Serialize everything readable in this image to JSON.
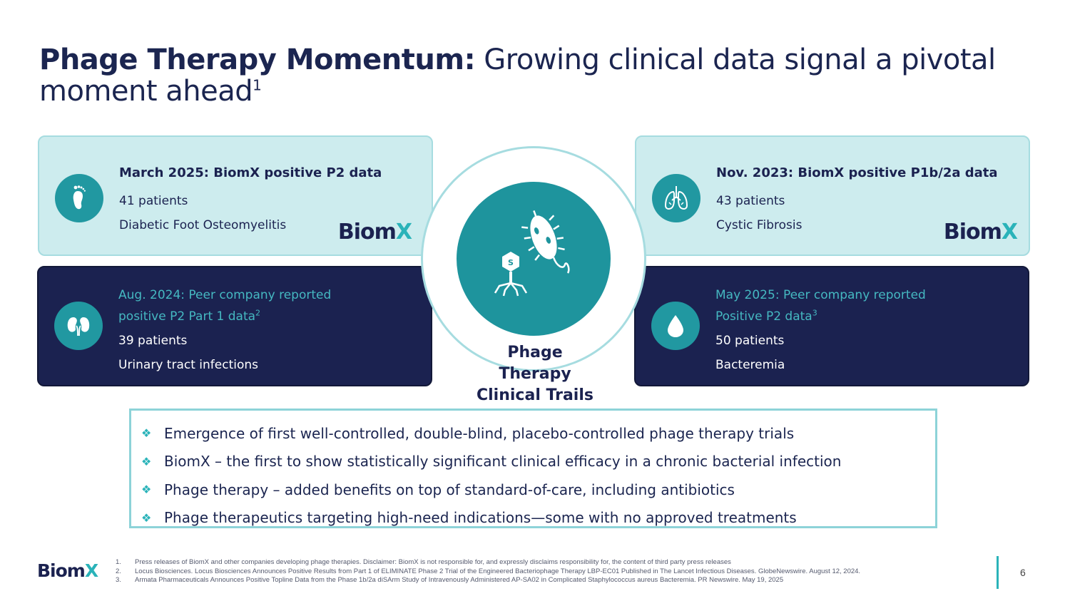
{
  "title": {
    "bold": "Phage Therapy Momentum:",
    "rest": " Growing clinical data signal a pivotal moment ahead",
    "sup": "1"
  },
  "cards": {
    "top_left": {
      "heading": "March 2025: BiomX positive P2 data",
      "line1": "41 patients",
      "line2": "Diabetic Foot Osteomyelitis",
      "icon": "foot-icon",
      "brand_main": "Biom",
      "brand_x": "X"
    },
    "top_right": {
      "heading": "Nov. 2023: BiomX positive P1b/2a data",
      "line1": "43 patients",
      "line2": "Cystic Fibrosis",
      "icon": "lungs-icon",
      "brand_main": "Biom",
      "brand_x": "X"
    },
    "bottom_left": {
      "heading_line1": "Aug. 2024: Peer company reported",
      "heading_line2": "positive P2  Part 1 data",
      "sup": "2",
      "line1": "39 patients",
      "line2": "Urinary tract infections",
      "icon": "kidneys-icon"
    },
    "bottom_right": {
      "heading_line1": "May 2025: Peer company reported",
      "heading_line2": "Positive P2 data",
      "sup": "3",
      "line1": "50 patients",
      "line2": "Bacteremia",
      "icon": "drop-icon"
    }
  },
  "center": {
    "label_line1": "Phage",
    "label_line2": "Therapy",
    "label_line3": "Clinical Trails",
    "icon": "phage-bacteria-icon"
  },
  "bullets": [
    "Emergence of first well-controlled, double-blind, placebo-controlled phage therapy trials",
    "BiomX – the first to show statistically significant clinical efficacy in a chronic bacterial infection",
    "Phage therapy – added benefits on top of standard-of-care, including antibiotics",
    "Phage therapeutics targeting high-need indications—some with no approved treatments"
  ],
  "footer": {
    "logo_main": "Biom",
    "logo_x": "X",
    "footnotes": [
      {
        "n": "1.",
        "text": "Press releases of BiomX and other companies developing phage therapies. Disclaimer: BiomX is not responsible for, and expressly disclaims responsibility for, the content of third party press releases"
      },
      {
        "n": "2.",
        "text": "Locus Biosciences. Locus Biosciences Announces Positive Results from Part 1 of ELIMINATE Phase 2 Trial of the Engineered Bacteriophage Therapy LBP-EC01 Published in The Lancet Infectious Diseases. GlobeNewswire. August 12, 2024."
      },
      {
        "n": "3.",
        "text": "Armata Pharmaceuticals Announces Positive Topline Data from the Phase 1b/2a diSArm Study of Intravenously Administered AP-SA02 in Complicated Staphylococcus aureus Bacteremia. PR Newswire. May 19, 2025"
      }
    ],
    "page_number": "6"
  },
  "colors": {
    "navy": "#1b2250",
    "teal": "#2198a1",
    "light_teal": "#cdecee",
    "accent": "#2ab3b9"
  }
}
